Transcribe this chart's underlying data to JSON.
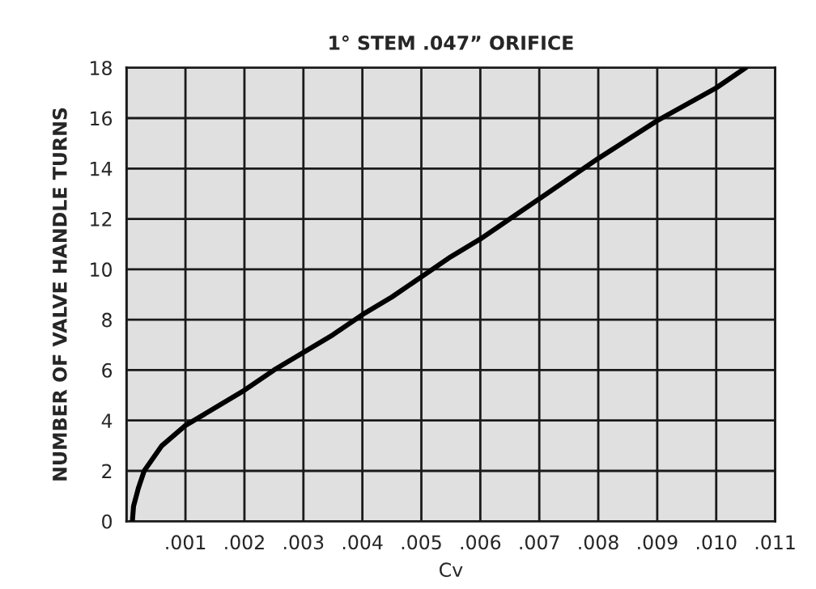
{
  "chart_data": {
    "type": "line",
    "title": "1° STEM .047” ORIFICE",
    "xlabel": "Cv",
    "ylabel": "NUMBER OF VALVE HANDLE TURNS",
    "series": [
      {
        "color": "#000000",
        "x": [
          0.0001,
          0.00012,
          0.0002,
          0.0003,
          0.0006,
          0.001,
          0.0015,
          0.002,
          0.0025,
          0.003,
          0.0035,
          0.004,
          0.0045,
          0.005,
          0.0055,
          0.006,
          0.007,
          0.008,
          0.009,
          0.01,
          0.0105
        ],
        "values": [
          0,
          0.6,
          1.3,
          2,
          3,
          3.8,
          4.5,
          5.2,
          6,
          6.7,
          7.4,
          8.2,
          8.9,
          9.7,
          10.5,
          11.2,
          12.8,
          14.4,
          15.9,
          17.2,
          18
        ]
      }
    ],
    "xlim": [
      0,
      0.011
    ],
    "ylim": [
      0,
      18
    ],
    "xticks": [
      {
        "value": 0,
        "label": null
      },
      {
        "value": 0.001,
        "label": ".001"
      },
      {
        "value": 0.002,
        "label": ".002"
      },
      {
        "value": 0.003,
        "label": ".003"
      },
      {
        "value": 0.004,
        "label": ".004"
      },
      {
        "value": 0.005,
        "label": ".005"
      },
      {
        "value": 0.006,
        "label": ".006"
      },
      {
        "value": 0.007,
        "label": ".007"
      },
      {
        "value": 0.008,
        "label": ".008"
      },
      {
        "value": 0.009,
        "label": ".009"
      },
      {
        "value": 0.01,
        "label": ".010"
      },
      {
        "value": 0.011,
        "label": ".011"
      }
    ],
    "yticks": [
      0,
      2,
      4,
      6,
      8,
      10,
      12,
      14,
      16,
      18
    ],
    "grid": true,
    "legend": false,
    "marker": "none",
    "line_style": "solid"
  }
}
